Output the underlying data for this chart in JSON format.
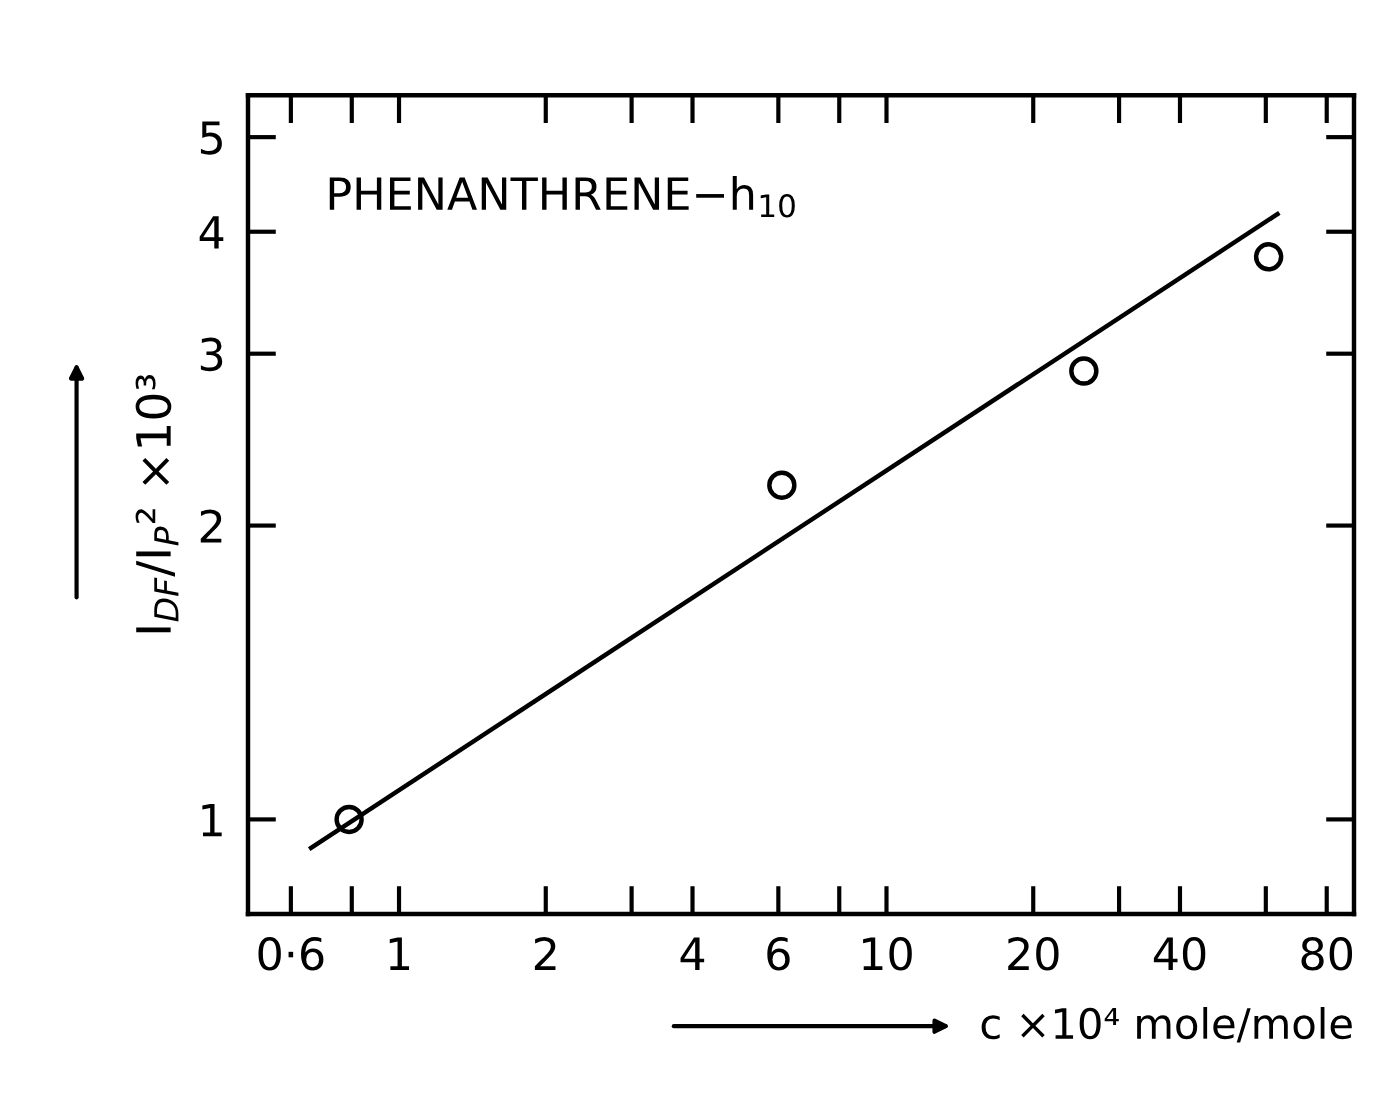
{
  "chart_data": {
    "type": "scatter",
    "xlabel": "c ×10⁴ mole/mole",
    "ylabel": "I$_{DF}$/I$_{P}$² ×10³",
    "log": "xy",
    "grid": false,
    "annotations": [
      "PHENANTHRENE−h$_{10}$"
    ],
    "x": [
      0.79,
      6.1,
      25.4,
      60.8
    ],
    "series": [
      {
        "color": "#000000",
        "marker": "circle",
        "values": [
          1.0,
          2.2,
          2.88,
          3.77
        ]
      },
      {
        "type": "line",
        "color": "#000000",
        "marker": "none",
        "line_style": "solid",
        "x": [
          0.66,
          63.4
        ],
        "values": [
          0.935,
          4.17
        ]
      }
    ],
    "xlim": [
      0.49,
      91
    ],
    "ylim": [
      0.8,
      5.52
    ],
    "xticks": [
      {
        "value": 0.6,
        "label": "0·6"
      },
      {
        "value": 0.8,
        "label": null
      },
      1,
      2,
      {
        "value": 3,
        "label": null
      },
      4,
      6,
      {
        "value": 8,
        "label": null
      },
      10,
      20,
      {
        "value": 30,
        "label": null
      },
      40,
      {
        "value": 60,
        "label": null
      },
      80
    ],
    "yticks": [
      1,
      2,
      3,
      4,
      5
    ]
  }
}
